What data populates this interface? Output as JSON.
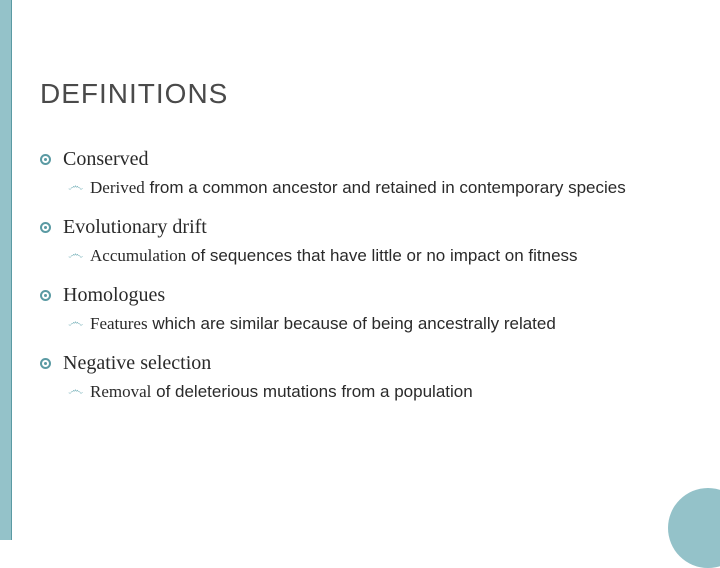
{
  "colors": {
    "accent": "#94c2c9",
    "accent_border": "#5a9aa3",
    "title": "#4a4a4a",
    "text": "#2a2a2a",
    "swirl": "#7ab3bb",
    "background": "#ffffff"
  },
  "typography": {
    "title_fontsize": 28,
    "term_fontsize": 20,
    "def_fontsize": 17,
    "title_font": "Arial",
    "term_font": "Georgia",
    "def_font_mixed": true
  },
  "title": "DEFINITIONS",
  "terms": [
    {
      "label": "Conserved",
      "def_lead": "Derived",
      "def_rest": " from a common ancestor and retained in contemporary species"
    },
    {
      "label": "Evolutionary drift",
      "def_lead": "Accumulation",
      "def_rest": " of sequences that have little or no impact on fitness"
    },
    {
      "label": "Homologues",
      "def_lead": "Features",
      "def_rest": " which are similar because of being ancestrally related"
    },
    {
      "label": "Negative selection",
      "def_lead": "Removal",
      "def_rest": " of deleterious mutations from a population"
    }
  ],
  "swirl_glyph": "෴"
}
